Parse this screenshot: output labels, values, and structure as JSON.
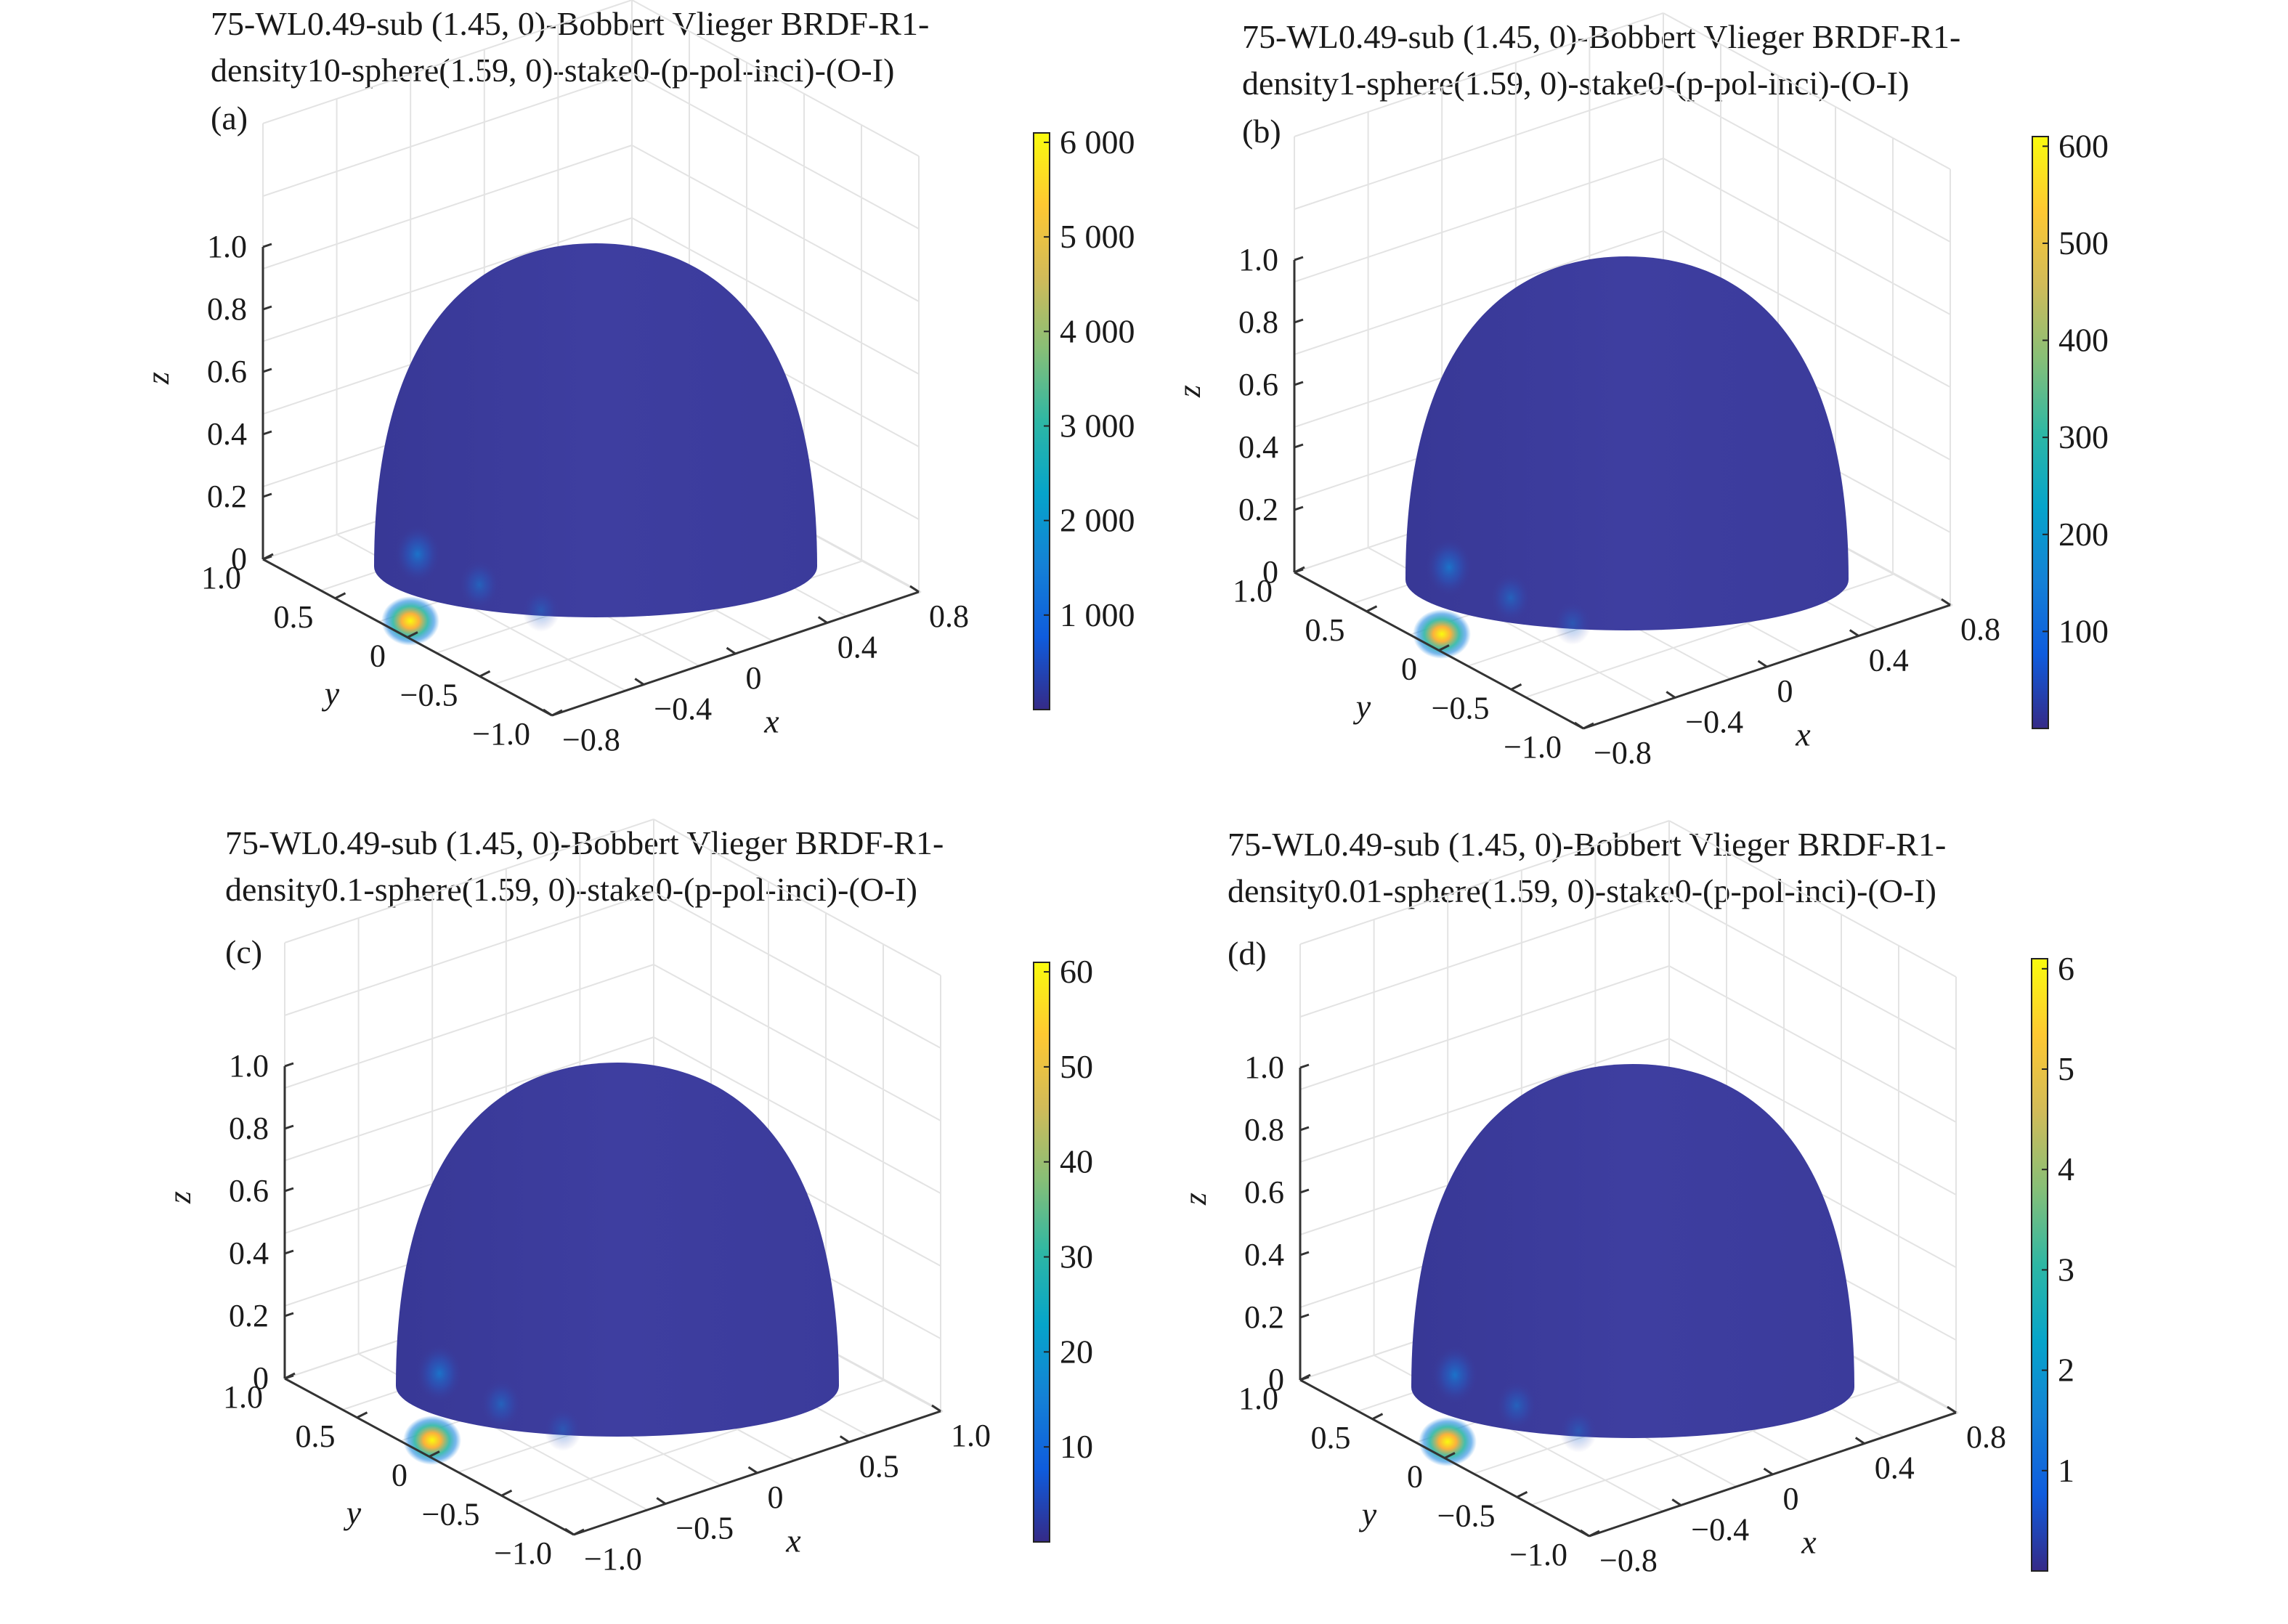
{
  "figure": {
    "background": "#ffffff",
    "colormap": [
      "#352a87",
      "#0f5cdd",
      "#1481d6",
      "#06a4ca",
      "#2eb7a4",
      "#87bf77",
      "#d1bb59",
      "#fec832",
      "#f9fb0e"
    ],
    "hemisphere_color": "#3d3d9e",
    "hotspot_colors": [
      "#f9fb0e",
      "#fbb13c",
      "#2eb7a4",
      "#0f7fe0"
    ]
  },
  "chart_data": [
    {
      "type": "surface3d",
      "panel_label": "(a)",
      "title_line1": "75-WL0.49-sub (1.45, 0)-Bobbert Vlieger BRDF-R1-",
      "title_line2": "density10-sphere(1.59, 0)-stake0-(p-pol-inci)-(O-I)",
      "xlabel": "x",
      "ylabel": "y",
      "zlabel": "z",
      "x_ticks": [
        -0.8,
        -0.4,
        0,
        0.4,
        0.8
      ],
      "x_tick_labels": [
        "−0.8",
        "−0.4",
        "0",
        "0.4",
        "0.8"
      ],
      "y_ticks": [
        -1.0,
        -0.5,
        0,
        0.5,
        1.0
      ],
      "y_tick_labels": [
        "−1.0",
        "−0.5",
        "0",
        "0.5",
        "1.0"
      ],
      "z_ticks": [
        0,
        0.2,
        0.4,
        0.6,
        0.8,
        1.0
      ],
      "z_tick_labels": [
        "0",
        "0.2",
        "0.4",
        "0.6",
        "0.8",
        "1.0"
      ],
      "colorbar": {
        "range": [
          0,
          6100
        ],
        "ticks": [
          1000,
          2000,
          3000,
          4000,
          5000,
          6000
        ],
        "tick_labels": [
          "1 000",
          "2 000",
          "3 000",
          "4 000",
          "5 000",
          "6 000"
        ]
      }
    },
    {
      "type": "surface3d",
      "panel_label": "(b)",
      "title_line1": "75-WL0.49-sub (1.45, 0)-Bobbert Vlieger BRDF-R1-",
      "title_line2": "density1-sphere(1.59, 0)-stake0-(p-pol-inci)-(O-I)",
      "xlabel": "x",
      "ylabel": "y",
      "zlabel": "z",
      "x_ticks": [
        -0.8,
        -0.4,
        0,
        0.4,
        0.8
      ],
      "x_tick_labels": [
        "−0.8",
        "−0.4",
        "0",
        "0.4",
        "0.8"
      ],
      "y_ticks": [
        -1.0,
        -0.5,
        0,
        0.5,
        1.0
      ],
      "y_tick_labels": [
        "−1.0",
        "−0.5",
        "0",
        "0.5",
        "1.0"
      ],
      "z_ticks": [
        0,
        0.2,
        0.4,
        0.6,
        0.8,
        1.0
      ],
      "z_tick_labels": [
        "0",
        "0.2",
        "0.4",
        "0.6",
        "0.8",
        "1.0"
      ],
      "colorbar": {
        "range": [
          0,
          610
        ],
        "ticks": [
          100,
          200,
          300,
          400,
          500,
          600
        ],
        "tick_labels": [
          "100",
          "200",
          "300",
          "400",
          "500",
          "600"
        ]
      }
    },
    {
      "type": "surface3d",
      "panel_label": "(c)",
      "title_line1": "75-WL0.49-sub (1.45, 0)-Bobbert Vlieger BRDF-R1-",
      "title_line2": "density0.1-sphere(1.59, 0)-stake0-(p-pol-inci)-(O-I)",
      "xlabel": "x",
      "ylabel": "y",
      "zlabel": "z",
      "x_ticks": [
        -1.0,
        -0.5,
        0,
        0.5,
        1.0
      ],
      "x_tick_labels": [
        "−1.0",
        "−0.5",
        "0",
        "0.5",
        "1.0"
      ],
      "y_ticks": [
        -1.0,
        -0.5,
        0,
        0.5,
        1.0
      ],
      "y_tick_labels": [
        "−1.0",
        "−0.5",
        "0",
        "0.5",
        "1.0"
      ],
      "z_ticks": [
        0,
        0.2,
        0.4,
        0.6,
        0.8,
        1.0
      ],
      "z_tick_labels": [
        "0",
        "0.2",
        "0.4",
        "0.6",
        "0.8",
        "1.0"
      ],
      "colorbar": {
        "range": [
          0,
          61
        ],
        "ticks": [
          10,
          20,
          30,
          40,
          50,
          60
        ],
        "tick_labels": [
          "10",
          "20",
          "30",
          "40",
          "50",
          "60"
        ]
      }
    },
    {
      "type": "surface3d",
      "panel_label": "(d)",
      "title_line1": "75-WL0.49-sub (1.45, 0)-Bobbert Vlieger BRDF-R1-",
      "title_line2": "density0.01-sphere(1.59, 0)-stake0-(p-pol-inci)-(O-I)",
      "xlabel": "x",
      "ylabel": "y",
      "zlabel": "z",
      "x_ticks": [
        -0.8,
        -0.4,
        0,
        0.4,
        0.8
      ],
      "x_tick_labels": [
        "−0.8",
        "−0.4",
        "0",
        "0.4",
        "0.8"
      ],
      "y_ticks": [
        -1.0,
        -0.5,
        0,
        0.5,
        1.0
      ],
      "y_tick_labels": [
        "−1.0",
        "−0.5",
        "0",
        "0.5",
        "1.0"
      ],
      "z_ticks": [
        0,
        0.2,
        0.4,
        0.6,
        0.8,
        1.0
      ],
      "z_tick_labels": [
        "0",
        "0.2",
        "0.4",
        "0.6",
        "0.8",
        "1.0"
      ],
      "colorbar": {
        "range": [
          0,
          6.1
        ],
        "ticks": [
          1,
          2,
          3,
          4,
          5,
          6
        ],
        "tick_labels": [
          "1",
          "2",
          "3",
          "4",
          "5",
          "6"
        ]
      }
    }
  ]
}
